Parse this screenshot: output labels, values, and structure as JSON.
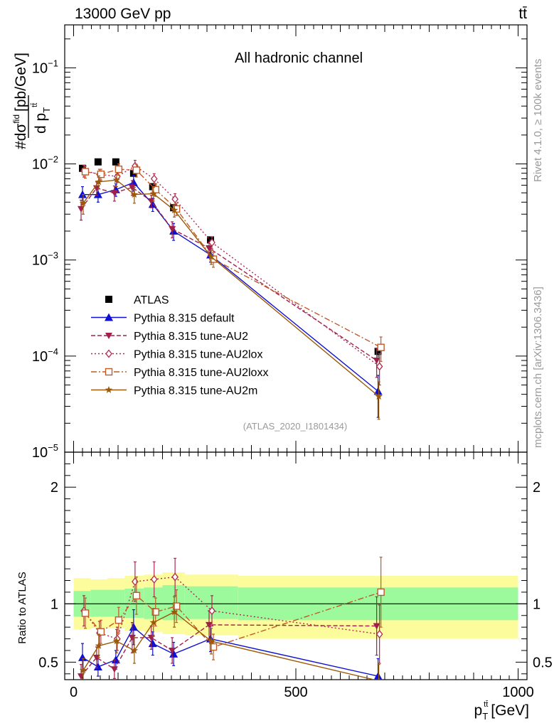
{
  "header": {
    "left": "13000 GeV pp",
    "right": "tt̄"
  },
  "side_labels": {
    "rivet": "Rivet 4.1.0, ≥ 100k events",
    "mcplots": "mcplots.cern.ch [arXiv:1306.3436]"
  },
  "chart_data": [
    {
      "type": "line",
      "panel": "main",
      "title": "All hadronic channel",
      "analysis_label": "(ATLAS_2020_I1801434)",
      "xlabel": "p_T^{tt̄} [GeV]",
      "ylabel": "#dσ^{fid} / d p_T^{tt̄} [pb/GeV]",
      "ylabel_parts": {
        "numerator": "#dσ",
        "sup": "fid",
        "unit": "[pb/GeV]",
        "denominator": "d p",
        "sub": "T",
        "sub_sup": "tt̄"
      },
      "yscale": "log",
      "xlim": [
        -20,
        1020
      ],
      "ylim": [
        1e-05,
        0.28
      ],
      "y_ticks": [
        {
          "value": 0.1,
          "base": "10",
          "exp": "−1"
        },
        {
          "value": 0.01,
          "base": "10",
          "exp": "−2"
        },
        {
          "value": 0.001,
          "base": "10",
          "exp": "−3"
        },
        {
          "value": 0.0001,
          "base": "10",
          "exp": "−4"
        },
        {
          "value": 1e-05,
          "base": "10",
          "exp": "−5"
        }
      ],
      "x": [
        20,
        55,
        95,
        135,
        178,
        225,
        308,
        685
      ],
      "series": [
        {
          "name": "ATLAS",
          "color": "#000000",
          "marker": "square-filled",
          "dash": "none",
          "values": [
            0.009,
            0.0105,
            0.0105,
            0.008,
            0.0058,
            0.0035,
            0.00162,
            0.000112
          ],
          "err_low": [
            0.0007,
            0.0008,
            0.0008,
            0.0006,
            0.0004,
            0.0003,
            0.00013,
            1.5e-05
          ],
          "err_high": [
            0.0007,
            0.0008,
            0.0008,
            0.0006,
            0.0004,
            0.0003,
            0.00013,
            1.5e-05
          ]
        },
        {
          "name": "Pythia 8.315 default",
          "color": "#1010d0",
          "marker": "triangle-up-filled",
          "dash": "none",
          "values": [
            0.0048,
            0.0048,
            0.0054,
            0.0064,
            0.0038,
            0.002,
            0.00113,
            4.3e-05
          ],
          "err_low": [
            0.001,
            0.0008,
            0.0008,
            0.0012,
            0.0006,
            0.0004,
            0.00018,
            2e-05
          ],
          "err_high": [
            0.001,
            0.0008,
            0.0008,
            0.0012,
            0.0006,
            0.0004,
            0.00018,
            2e-05
          ]
        },
        {
          "name": "Pythia 8.315 tune-AU2",
          "color": "#a0204a",
          "marker": "triangle-down-filled",
          "dash": "6,3",
          "values": [
            0.0034,
            0.0056,
            0.005,
            0.0057,
            0.0041,
            0.0021,
            0.00133,
            9e-05
          ],
          "err_low": [
            0.0008,
            0.0009,
            0.0009,
            0.001,
            0.0006,
            0.0004,
            0.0002,
            3e-05
          ],
          "err_high": [
            0.0008,
            0.0009,
            0.0009,
            0.001,
            0.0006,
            0.0004,
            0.0002,
            3e-05
          ]
        },
        {
          "name": "Pythia 8.315 tune-AU2lox",
          "color": "#b02850",
          "marker": "diamond-open",
          "dash": "2,3",
          "values": [
            0.0085,
            0.0078,
            0.0074,
            0.0095,
            0.007,
            0.0043,
            0.00152,
            7.8e-05
          ],
          "err_low": [
            0.0012,
            0.001,
            0.001,
            0.0014,
            0.0009,
            0.0006,
            0.00022,
            2.8e-05
          ],
          "err_high": [
            0.0012,
            0.001,
            0.001,
            0.0014,
            0.0009,
            0.0006,
            0.00022,
            2.8e-05
          ]
        },
        {
          "name": "Pythia 8.315 tune-AU2loxx",
          "color": "#c05a28",
          "marker": "square-open",
          "dash": "8,3,2,3",
          "values": [
            0.0083,
            0.0078,
            0.0088,
            0.0086,
            0.0054,
            0.0034,
            0.00102,
            0.000123
          ],
          "err_low": [
            0.0012,
            0.001,
            0.0012,
            0.0013,
            0.0008,
            0.0005,
            0.00018,
            3.5e-05
          ],
          "err_high": [
            0.0012,
            0.001,
            0.0012,
            0.0013,
            0.0008,
            0.0005,
            0.00018,
            3.5e-05
          ]
        },
        {
          "name": "Pythia 8.315 tune-AU2m",
          "color": "#9a5a0a",
          "marker": "star-filled",
          "dash": "none",
          "values": [
            0.0039,
            0.0065,
            0.0068,
            0.0048,
            0.0049,
            0.0033,
            0.00108,
            3.8e-05
          ],
          "err_low": [
            0.0009,
            0.001,
            0.001,
            0.0009,
            0.0008,
            0.0005,
            0.00018,
            1.6e-05
          ],
          "err_high": [
            0.0009,
            0.001,
            0.001,
            0.0009,
            0.0008,
            0.0005,
            0.00018,
            1.6e-05
          ]
        }
      ]
    },
    {
      "type": "line",
      "panel": "ratio",
      "ylabel": "Ratio to ATLAS",
      "xlabel_base": "p",
      "xlabel_sub": "T",
      "xlabel_sup": "tt̄",
      "xlabel_unit": "[GeV]",
      "xlim": [
        -20,
        1020
      ],
      "ylim": [
        0.35,
        2.3
      ],
      "y_ticks": [
        0.5,
        1,
        2
      ],
      "x_ticks": [
        0,
        500,
        1000
      ],
      "reference_line": 1,
      "bands": {
        "bin_edges": [
          0,
          38,
          76,
          115,
          158,
          200,
          250,
          370,
          1000
        ],
        "inner_low": [
          0.89,
          0.89,
          0.89,
          0.88,
          0.87,
          0.86,
          0.87,
          0.86
        ],
        "inner_high": [
          1.11,
          1.12,
          1.12,
          1.13,
          1.14,
          1.16,
          1.15,
          1.14
        ],
        "outer_low": [
          0.78,
          0.79,
          0.79,
          0.77,
          0.76,
          0.74,
          0.73,
          0.7
        ],
        "outer_high": [
          1.22,
          1.21,
          1.22,
          1.24,
          1.25,
          1.27,
          1.25,
          1.24
        ],
        "inner_color": "#9cf99c",
        "outer_color": "#fcfc9c"
      },
      "x": [
        20,
        55,
        95,
        135,
        178,
        225,
        308,
        685
      ],
      "series": [
        {
          "name": "Pythia 8.315 default",
          "color": "#1010d0",
          "marker": "triangle-up-filled",
          "dash": "none",
          "values": [
            0.54,
            0.46,
            0.52,
            0.8,
            0.66,
            0.57,
            0.7,
            0.38
          ],
          "err": [
            0.12,
            0.08,
            0.08,
            0.15,
            0.1,
            0.1,
            0.11,
            0.15
          ]
        },
        {
          "name": "Pythia 8.315 tune-AU2",
          "color": "#a0204a",
          "marker": "triangle-down-filled",
          "dash": "6,3",
          "values": [
            0.38,
            0.54,
            0.44,
            0.71,
            0.71,
            0.6,
            0.82,
            0.81
          ],
          "err": [
            0.1,
            0.09,
            0.08,
            0.13,
            0.1,
            0.11,
            0.12,
            0.25
          ]
        },
        {
          "name": "Pythia 8.315 tune-AU2lox",
          "color": "#b02850",
          "marker": "diamond-open",
          "dash": "2,3",
          "values": [
            0.94,
            0.75,
            0.7,
            1.19,
            1.21,
            1.23,
            0.94,
            0.74
          ],
          "err": [
            0.13,
            0.1,
            0.1,
            0.17,
            0.15,
            0.16,
            0.13,
            0.25
          ]
        },
        {
          "name": "Pythia 8.315 tune-AU2loxx",
          "color": "#c05a28",
          "marker": "square-open",
          "dash": "8,3,2,3",
          "values": [
            0.92,
            0.76,
            0.86,
            1.07,
            0.93,
            0.98,
            0.63,
            1.1
          ],
          "err": [
            0.13,
            0.1,
            0.11,
            0.16,
            0.12,
            0.14,
            0.11,
            0.3
          ]
        },
        {
          "name": "Pythia 8.315 tune-AU2m",
          "color": "#9a5a0a",
          "marker": "star-filled",
          "dash": "none",
          "values": [
            0.43,
            0.64,
            0.68,
            0.6,
            0.84,
            0.93,
            0.68,
            0.34
          ],
          "err": [
            0.1,
            0.1,
            0.1,
            0.11,
            0.12,
            0.13,
            0.11,
            0.14
          ]
        }
      ]
    }
  ]
}
